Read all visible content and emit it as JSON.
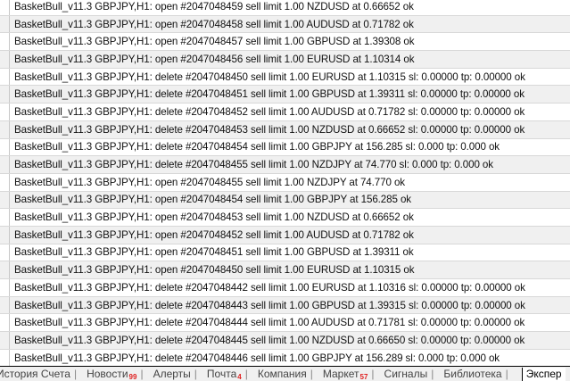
{
  "log": [
    "BasketBull_v11.3 GBPJPY,H1: open #2047048459 sell limit 1.00 NZDUSD at 0.66652 ok",
    "BasketBull_v11.3 GBPJPY,H1: open #2047048458 sell limit 1.00 AUDUSD at 0.71782 ok",
    "BasketBull_v11.3 GBPJPY,H1: open #2047048457 sell limit 1.00 GBPUSD at 1.39308 ok",
    "BasketBull_v11.3 GBPJPY,H1: open #2047048456 sell limit 1.00 EURUSD at 1.10314 ok",
    "BasketBull_v11.3 GBPJPY,H1: delete #2047048450 sell limit 1.00 EURUSD at 1.10315 sl: 0.00000 tp: 0.00000 ok",
    "BasketBull_v11.3 GBPJPY,H1: delete #2047048451 sell limit 1.00 GBPUSD at 1.39311 sl: 0.00000 tp: 0.00000 ok",
    "BasketBull_v11.3 GBPJPY,H1: delete #2047048452 sell limit 1.00 AUDUSD at 0.71782 sl: 0.00000 tp: 0.00000 ok",
    "BasketBull_v11.3 GBPJPY,H1: delete #2047048453 sell limit 1.00 NZDUSD at 0.66652 sl: 0.00000 tp: 0.00000 ok",
    "BasketBull_v11.3 GBPJPY,H1: delete #2047048454 sell limit 1.00 GBPJPY at 156.285 sl: 0.000 tp: 0.000 ok",
    "BasketBull_v11.3 GBPJPY,H1: delete #2047048455 sell limit 1.00 NZDJPY at 74.770 sl: 0.000 tp: 0.000 ok",
    "BasketBull_v11.3 GBPJPY,H1: open #2047048455 sell limit 1.00 NZDJPY at 74.770 ok",
    "BasketBull_v11.3 GBPJPY,H1: open #2047048454 sell limit 1.00 GBPJPY at 156.285 ok",
    "BasketBull_v11.3 GBPJPY,H1: open #2047048453 sell limit 1.00 NZDUSD at 0.66652 ok",
    "BasketBull_v11.3 GBPJPY,H1: open #2047048452 sell limit 1.00 AUDUSD at 0.71782 ok",
    "BasketBull_v11.3 GBPJPY,H1: open #2047048451 sell limit 1.00 GBPUSD at 1.39311 ok",
    "BasketBull_v11.3 GBPJPY,H1: open #2047048450 sell limit 1.00 EURUSD at 1.10315 ok",
    "BasketBull_v11.3 GBPJPY,H1: delete #2047048442 sell limit 1.00 EURUSD at 1.10316 sl: 0.00000 tp: 0.00000 ok",
    "BasketBull_v11.3 GBPJPY,H1: delete #2047048443 sell limit 1.00 GBPUSD at 1.39315 sl: 0.00000 tp: 0.00000 ok",
    "BasketBull_v11.3 GBPJPY,H1: delete #2047048444 sell limit 1.00 AUDUSD at 0.71781 sl: 0.00000 tp: 0.00000 ok",
    "BasketBull_v11.3 GBPJPY,H1: delete #2047048445 sell limit 1.00 NZDUSD at 0.66650 sl: 0.00000 tp: 0.00000 ok",
    "BasketBull_v11.3 GBPJPY,H1: delete #2047048446 sell limit 1.00 GBPJPY at 156.289 sl: 0.000 tp: 0.000 ok"
  ],
  "tabs": [
    {
      "label": "История Счета",
      "badge": ""
    },
    {
      "label": "Новости",
      "badge": "99"
    },
    {
      "label": "Алерты",
      "badge": ""
    },
    {
      "label": "Почта",
      "badge": "4"
    },
    {
      "label": "Компания",
      "badge": ""
    },
    {
      "label": "Маркет",
      "badge": "57"
    },
    {
      "label": "Сигналы",
      "badge": ""
    },
    {
      "label": "Библиотека",
      "badge": ""
    }
  ],
  "active_tab": "Экспер",
  "colors": {
    "badge": "#e02020",
    "row_alt": "#f0f0f0"
  }
}
